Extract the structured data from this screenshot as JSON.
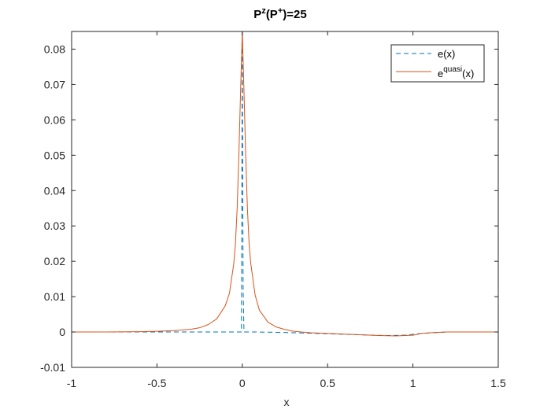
{
  "chart_data": {
    "type": "line",
    "title": {
      "base": "P",
      "sup1": "z",
      "mid": "(P",
      "sup2": "+",
      "tail": ")=25"
    },
    "xlabel": "x",
    "ylabel": "",
    "xlim": [
      -1,
      1.5
    ],
    "ylim": [
      -0.01,
      0.085
    ],
    "xticks": [
      -1,
      -0.5,
      0,
      0.5,
      1,
      1.5
    ],
    "xtick_labels": [
      "-1",
      "-0.5",
      "0",
      "0.5",
      "1",
      "1.5"
    ],
    "yticks": [
      -0.01,
      0,
      0.01,
      0.02,
      0.03,
      0.04,
      0.05,
      0.06,
      0.07,
      0.08
    ],
    "ytick_labels": [
      "-0.01",
      "0",
      "0.01",
      "0.02",
      "0.03",
      "0.04",
      "0.05",
      "0.06",
      "0.07",
      "0.08"
    ],
    "grid": false,
    "legend_position": "top-right",
    "series": [
      {
        "name": "e(x)",
        "legend": {
          "base": "e(x)"
        },
        "color": "#0072BD",
        "style": "dashed",
        "x": [
          -1,
          -0.5,
          -0.2,
          -0.1,
          -0.05,
          -0.02,
          -0.01,
          -0.005,
          0,
          0.002,
          0.005,
          0.01,
          0.02,
          0.1,
          0.3,
          0.5,
          0.7,
          0.85,
          0.95,
          1.05,
          1.2,
          1.5
        ],
        "y": [
          0,
          0,
          0,
          0,
          0,
          0,
          0,
          0,
          0.085,
          0.05,
          0.012,
          0,
          0,
          0,
          -0.0002,
          -0.0005,
          -0.0008,
          -0.001,
          -0.0009,
          -0.0004,
          0,
          0
        ]
      },
      {
        "name": "e^quasi(x)",
        "legend": {
          "base": "e",
          "sup": "quasi",
          "tail": "(x)"
        },
        "color": "#D95319",
        "style": "solid",
        "x": [
          -1,
          -0.8,
          -0.6,
          -0.5,
          -0.4,
          -0.3,
          -0.25,
          -0.2,
          -0.15,
          -0.1,
          -0.075,
          -0.05,
          -0.04,
          -0.03,
          -0.02,
          -0.01,
          0,
          0.01,
          0.02,
          0.03,
          0.04,
          0.05,
          0.075,
          0.1,
          0.15,
          0.2,
          0.25,
          0.3,
          0.4,
          0.5,
          0.6,
          0.7,
          0.8,
          0.9,
          1.0,
          1.05,
          1.1,
          1.2,
          1.3,
          1.5
        ],
        "y": [
          0,
          0,
          0.0001,
          0.0002,
          0.0004,
          0.0008,
          0.0012,
          0.0021,
          0.0037,
          0.0074,
          0.011,
          0.0193,
          0.025,
          0.035,
          0.05,
          0.068,
          0.085,
          0.068,
          0.05,
          0.035,
          0.025,
          0.0193,
          0.0105,
          0.0062,
          0.0028,
          0.0014,
          0.0007,
          0.0002,
          -0.0002,
          -0.0004,
          -0.0006,
          -0.0008,
          -0.001,
          -0.0011,
          -0.0009,
          -0.0004,
          -0.0002,
          0,
          0,
          0
        ]
      }
    ]
  }
}
